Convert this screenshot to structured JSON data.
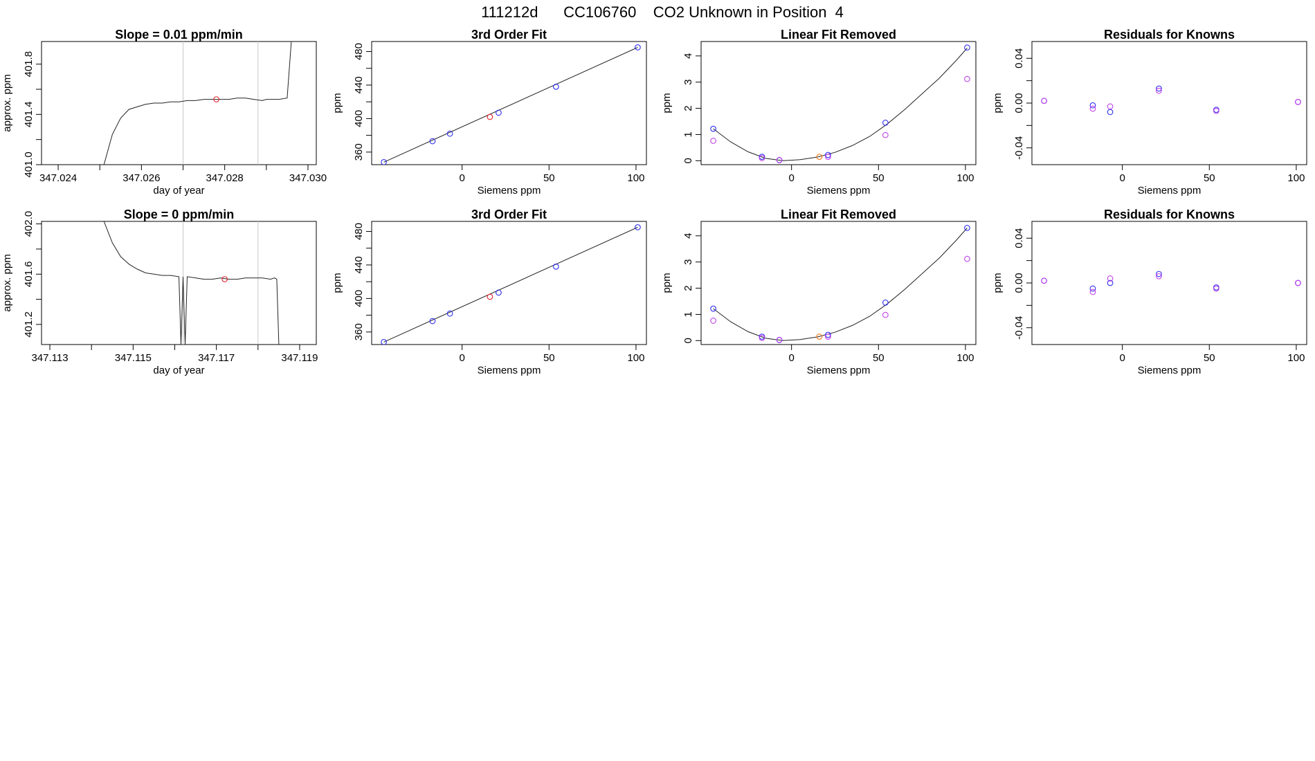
{
  "figure_title": "111212d      CC106760    CO2 Unknown in Position  4",
  "colors": {
    "blue": "#2f2ff0",
    "red": "#e0202a",
    "orange": "#ee7a1a",
    "magenta": "#c040e8",
    "line": "#222222",
    "guide": "#c8c8c8"
  },
  "chart_data": [
    {
      "type": "line",
      "title": "Slope =  0.01  ppm/min",
      "xlabel": "day of year",
      "ylabel": "approx. ppm",
      "xlim": [
        347.0236,
        347.0302
      ],
      "ylim": [
        401.0,
        401.98
      ],
      "xticks": [
        347.024,
        347.025,
        347.026,
        347.027,
        347.028,
        347.029,
        347.03
      ],
      "xtick_labels": [
        "347.024",
        "",
        "347.026",
        "",
        "347.028",
        "",
        "347.030"
      ],
      "yticks": [
        401.0,
        401.2,
        401.4,
        401.6,
        401.8
      ],
      "ytick_labels": [
        "401.0",
        "",
        "401.4",
        "",
        "401.8"
      ],
      "vlines": [
        347.027,
        347.0288
      ],
      "line": {
        "x": [
          347.0251,
          347.0253,
          347.0255,
          347.0257,
          347.0259,
          347.0261,
          347.0263,
          347.0265,
          347.0267,
          347.0269,
          347.0271,
          347.0273,
          347.0275,
          347.0277,
          347.0279,
          347.0281,
          347.0283,
          347.0285,
          347.0287,
          347.0289,
          347.029,
          347.0292,
          347.0293,
          347.0295,
          347.0296
        ],
        "y": [
          401.0,
          401.24,
          401.37,
          401.44,
          401.46,
          401.48,
          401.49,
          401.49,
          401.5,
          401.5,
          401.51,
          401.51,
          401.52,
          401.52,
          401.52,
          401.52,
          401.53,
          401.53,
          401.52,
          401.51,
          401.52,
          401.52,
          401.52,
          401.53,
          401.98
        ]
      },
      "points": [
        {
          "x": 347.0278,
          "y": 401.52,
          "color": "red"
        }
      ]
    },
    {
      "type": "scatter",
      "title": "3rd Order Fit",
      "xlabel": "Siemens ppm",
      "ylabel": "ppm",
      "xlim": [
        -52,
        106
      ],
      "ylim": [
        345,
        492
      ],
      "xticks": [
        0,
        50,
        100
      ],
      "xtick_labels": [
        "0",
        "50",
        "100"
      ],
      "yticks": [
        360,
        380,
        400,
        420,
        440,
        460,
        480
      ],
      "ytick_labels": [
        "360",
        "",
        "400",
        "",
        "440",
        "",
        "480"
      ],
      "fit_line": {
        "x": [
          -45,
          101
        ],
        "y": [
          348,
          485
        ]
      },
      "points": [
        {
          "x": -45,
          "y": 348,
          "color": "blue"
        },
        {
          "x": -17,
          "y": 373,
          "color": "blue"
        },
        {
          "x": -7,
          "y": 382,
          "color": "blue"
        },
        {
          "x": 16,
          "y": 402,
          "color": "red"
        },
        {
          "x": 21,
          "y": 407,
          "color": "blue"
        },
        {
          "x": 54,
          "y": 438,
          "color": "blue"
        },
        {
          "x": 101,
          "y": 485,
          "color": "blue"
        }
      ]
    },
    {
      "type": "scatter",
      "title": "Linear Fit Removed",
      "xlabel": "Siemens ppm",
      "ylabel": "ppm",
      "xlim": [
        -52,
        106
      ],
      "ylim": [
        -0.15,
        4.55
      ],
      "xticks": [
        0,
        50,
        100
      ],
      "xtick_labels": [
        "0",
        "50",
        "100"
      ],
      "yticks": [
        0,
        1,
        2,
        3,
        4
      ],
      "ytick_labels": [
        "0",
        "1",
        "2",
        "3",
        "4"
      ],
      "curve": {
        "x": [
          -45,
          -35,
          -25,
          -15,
          -5,
          5,
          15,
          25,
          35,
          45,
          55,
          65,
          75,
          85,
          95,
          101
        ],
        "y": [
          1.22,
          0.72,
          0.34,
          0.09,
          0.0,
          0.04,
          0.14,
          0.32,
          0.58,
          0.93,
          1.4,
          1.95,
          2.55,
          3.15,
          3.85,
          4.3
        ]
      },
      "points": [
        {
          "x": -45,
          "y": 1.22,
          "color": "blue"
        },
        {
          "x": -45,
          "y": 0.76,
          "color": "magenta"
        },
        {
          "x": -17,
          "y": 0.15,
          "color": "blue"
        },
        {
          "x": -17,
          "y": 0.1,
          "color": "magenta"
        },
        {
          "x": -7,
          "y": 0.02,
          "color": "blue"
        },
        {
          "x": -7,
          "y": 0.03,
          "color": "magenta"
        },
        {
          "x": 16,
          "y": 0.15,
          "color": "orange"
        },
        {
          "x": 21,
          "y": 0.22,
          "color": "blue"
        },
        {
          "x": 21,
          "y": 0.15,
          "color": "magenta"
        },
        {
          "x": 54,
          "y": 1.45,
          "color": "blue"
        },
        {
          "x": 54,
          "y": 0.98,
          "color": "magenta"
        },
        {
          "x": 101,
          "y": 4.32,
          "color": "blue"
        },
        {
          "x": 101,
          "y": 3.12,
          "color": "magenta"
        }
      ]
    },
    {
      "type": "scatter",
      "title": "Residuals for Knowns",
      "xlabel": "Siemens ppm",
      "ylabel": "ppm",
      "xlim": [
        -52,
        106
      ],
      "ylim": [
        -0.055,
        0.055
      ],
      "xticks": [
        0,
        50,
        100
      ],
      "xtick_labels": [
        "0",
        "50",
        "100"
      ],
      "yticks": [
        -0.04,
        -0.02,
        0.0,
        0.02,
        0.04
      ],
      "ytick_labels": [
        "-0.04",
        "",
        "0.00",
        "",
        "0.04"
      ],
      "points": [
        {
          "x": -45,
          "y": 0.002,
          "color": "blue"
        },
        {
          "x": -45,
          "y": 0.002,
          "color": "magenta"
        },
        {
          "x": -17,
          "y": -0.002,
          "color": "blue"
        },
        {
          "x": -17,
          "y": -0.005,
          "color": "magenta"
        },
        {
          "x": -7,
          "y": -0.008,
          "color": "blue"
        },
        {
          "x": -7,
          "y": -0.003,
          "color": "magenta"
        },
        {
          "x": 21,
          "y": 0.013,
          "color": "blue"
        },
        {
          "x": 21,
          "y": 0.011,
          "color": "magenta"
        },
        {
          "x": 54,
          "y": -0.006,
          "color": "blue"
        },
        {
          "x": 54,
          "y": -0.007,
          "color": "magenta"
        },
        {
          "x": 101,
          "y": 0.001,
          "color": "blue"
        },
        {
          "x": 101,
          "y": 0.001,
          "color": "magenta"
        }
      ]
    },
    {
      "type": "line",
      "title": "Slope =  0  ppm/min",
      "xlabel": "day of year",
      "ylabel": "approx. ppm",
      "xlim": [
        347.1128,
        347.1194
      ],
      "ylim": [
        401.04,
        402.02
      ],
      "xticks": [
        347.113,
        347.114,
        347.115,
        347.116,
        347.117,
        347.118,
        347.119
      ],
      "xtick_labels": [
        "347.113",
        "",
        "347.115",
        "",
        "347.117",
        "",
        "347.119"
      ],
      "yticks": [
        401.2,
        401.4,
        401.6,
        401.8,
        402.0
      ],
      "ytick_labels": [
        "401.2",
        "",
        "401.6",
        "",
        "402.0"
      ],
      "vlines": [
        347.1162,
        347.118
      ],
      "line": {
        "x": [
          347.1143,
          347.1145,
          347.1147,
          347.1149,
          347.1151,
          347.1153,
          347.1155,
          347.1157,
          347.1159,
          347.1161,
          347.11615,
          347.1162,
          347.11625,
          347.1163,
          347.1165,
          347.1167,
          347.1169,
          347.1171,
          347.1173,
          347.1175,
          347.1177,
          347.1179,
          347.1181,
          347.1183,
          347.1184,
          347.11845,
          347.1185
        ],
        "y": [
          402.02,
          401.85,
          401.74,
          401.68,
          401.64,
          401.61,
          401.6,
          401.59,
          401.59,
          401.58,
          401.04,
          401.58,
          401.04,
          401.58,
          401.57,
          401.56,
          401.56,
          401.57,
          401.56,
          401.56,
          401.57,
          401.57,
          401.57,
          401.56,
          401.57,
          401.56,
          401.04
        ]
      },
      "points": [
        {
          "x": 347.1172,
          "y": 401.56,
          "color": "red"
        }
      ]
    },
    {
      "type": "scatter",
      "title": "3rd Order Fit",
      "xlabel": "Siemens ppm",
      "ylabel": "ppm",
      "xlim": [
        -52,
        106
      ],
      "ylim": [
        345,
        492
      ],
      "xticks": [
        0,
        50,
        100
      ],
      "xtick_labels": [
        "0",
        "50",
        "100"
      ],
      "yticks": [
        360,
        380,
        400,
        420,
        440,
        460,
        480
      ],
      "ytick_labels": [
        "360",
        "",
        "400",
        "",
        "440",
        "",
        "480"
      ],
      "fit_line": {
        "x": [
          -45,
          101
        ],
        "y": [
          348,
          485
        ]
      },
      "points": [
        {
          "x": -45,
          "y": 348,
          "color": "blue"
        },
        {
          "x": -17,
          "y": 373,
          "color": "blue"
        },
        {
          "x": -7,
          "y": 382,
          "color": "blue"
        },
        {
          "x": 16,
          "y": 402,
          "color": "red"
        },
        {
          "x": 21,
          "y": 407,
          "color": "blue"
        },
        {
          "x": 54,
          "y": 438,
          "color": "blue"
        },
        {
          "x": 101,
          "y": 485,
          "color": "blue"
        }
      ]
    },
    {
      "type": "scatter",
      "title": "Linear Fit Removed",
      "xlabel": "Siemens ppm",
      "ylabel": "ppm",
      "xlim": [
        -52,
        106
      ],
      "ylim": [
        -0.15,
        4.55
      ],
      "xticks": [
        0,
        50,
        100
      ],
      "xtick_labels": [
        "0",
        "50",
        "100"
      ],
      "yticks": [
        0,
        1,
        2,
        3,
        4
      ],
      "ytick_labels": [
        "0",
        "1",
        "2",
        "3",
        "4"
      ],
      "curve": {
        "x": [
          -45,
          -35,
          -25,
          -15,
          -5,
          5,
          15,
          25,
          35,
          45,
          55,
          65,
          75,
          85,
          95,
          101
        ],
        "y": [
          1.22,
          0.72,
          0.34,
          0.09,
          0.0,
          0.04,
          0.14,
          0.32,
          0.58,
          0.93,
          1.4,
          1.95,
          2.55,
          3.15,
          3.85,
          4.3
        ]
      },
      "points": [
        {
          "x": -45,
          "y": 1.22,
          "color": "blue"
        },
        {
          "x": -45,
          "y": 0.76,
          "color": "magenta"
        },
        {
          "x": -17,
          "y": 0.15,
          "color": "blue"
        },
        {
          "x": -17,
          "y": 0.1,
          "color": "magenta"
        },
        {
          "x": -7,
          "y": 0.02,
          "color": "blue"
        },
        {
          "x": -7,
          "y": 0.03,
          "color": "magenta"
        },
        {
          "x": 16,
          "y": 0.15,
          "color": "orange"
        },
        {
          "x": 21,
          "y": 0.22,
          "color": "blue"
        },
        {
          "x": 21,
          "y": 0.15,
          "color": "magenta"
        },
        {
          "x": 54,
          "y": 1.45,
          "color": "blue"
        },
        {
          "x": 54,
          "y": 0.98,
          "color": "magenta"
        },
        {
          "x": 101,
          "y": 4.3,
          "color": "blue"
        },
        {
          "x": 101,
          "y": 3.12,
          "color": "magenta"
        }
      ]
    },
    {
      "type": "scatter",
      "title": "Residuals for Knowns",
      "xlabel": "Siemens ppm",
      "ylabel": "ppm",
      "xlim": [
        -52,
        106
      ],
      "ylim": [
        -0.055,
        0.055
      ],
      "xticks": [
        0,
        50,
        100
      ],
      "xtick_labels": [
        "0",
        "50",
        "100"
      ],
      "yticks": [
        -0.04,
        -0.02,
        0.0,
        0.02,
        0.04
      ],
      "ytick_labels": [
        "-0.04",
        "",
        "0.00",
        "",
        "0.04"
      ],
      "points": [
        {
          "x": -45,
          "y": 0.002,
          "color": "blue"
        },
        {
          "x": -45,
          "y": 0.002,
          "color": "magenta"
        },
        {
          "x": -17,
          "y": -0.005,
          "color": "blue"
        },
        {
          "x": -17,
          "y": -0.008,
          "color": "magenta"
        },
        {
          "x": -7,
          "y": 0.0,
          "color": "blue"
        },
        {
          "x": -7,
          "y": 0.004,
          "color": "magenta"
        },
        {
          "x": 21,
          "y": 0.008,
          "color": "blue"
        },
        {
          "x": 21,
          "y": 0.006,
          "color": "magenta"
        },
        {
          "x": 54,
          "y": -0.004,
          "color": "blue"
        },
        {
          "x": 54,
          "y": -0.005,
          "color": "magenta"
        },
        {
          "x": 101,
          "y": 0.0,
          "color": "blue"
        },
        {
          "x": 101,
          "y": 0.0,
          "color": "magenta"
        }
      ]
    }
  ]
}
